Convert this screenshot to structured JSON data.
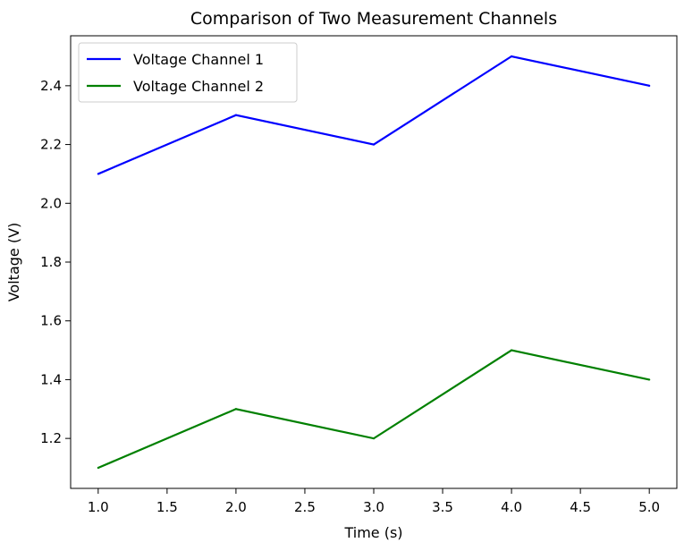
{
  "chart_data": {
    "type": "line",
    "title": "Comparison of Two Measurement Channels",
    "xlabel": "Time (s)",
    "ylabel": "Voltage (V)",
    "x": [
      1.0,
      2.0,
      3.0,
      4.0,
      5.0
    ],
    "xlim": [
      0.8,
      5.2
    ],
    "ylim": [
      1.03,
      2.57
    ],
    "xticks": [
      "1.0",
      "1.5",
      "2.0",
      "2.5",
      "3.0",
      "3.5",
      "4.0",
      "4.5",
      "5.0"
    ],
    "yticks": [
      "1.2",
      "1.4",
      "1.6",
      "1.8",
      "2.0",
      "2.2",
      "2.4"
    ],
    "grid": false,
    "legend_position": "top-left",
    "series": [
      {
        "name": "Voltage Channel 1",
        "color": "#0000ff",
        "values": [
          2.1,
          2.3,
          2.2,
          2.5,
          2.4
        ]
      },
      {
        "name": "Voltage Channel 2",
        "color": "#008000",
        "values": [
          1.1,
          1.3,
          1.2,
          1.5,
          1.4
        ]
      }
    ]
  }
}
